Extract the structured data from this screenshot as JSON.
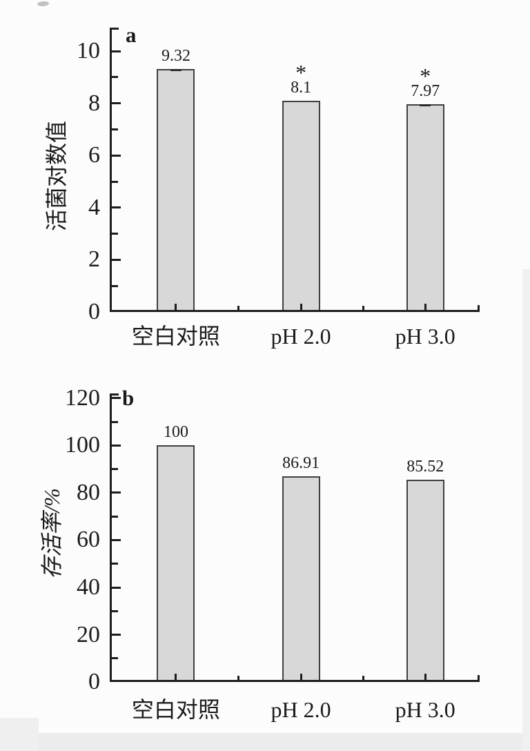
{
  "figure": {
    "background": "#fcfcfc",
    "panel_count": 2
  },
  "chart_data": [
    {
      "type": "bar",
      "panel_label": "a",
      "title": "",
      "xlabel": "",
      "ylabel": "活菌对数值",
      "categories": [
        "空白对照",
        "pH 2.0",
        "pH 3.0"
      ],
      "values": [
        9.32,
        8.1,
        7.97
      ],
      "value_labels": [
        "9.32",
        "8.1",
        "7.97"
      ],
      "annotations": [
        "",
        "*",
        "*"
      ],
      "error_caps": [
        true,
        false,
        true
      ],
      "yticks": [
        0,
        2,
        4,
        6,
        8,
        10
      ],
      "ytick_labels": [
        "0",
        "2",
        "4",
        "6",
        "8",
        "10"
      ],
      "minor_yticks": [
        1,
        3,
        5,
        7,
        9
      ],
      "ylim": [
        0,
        10.9
      ],
      "grid": false,
      "legend": false,
      "bar_fill": "#d8d8d8",
      "bar_border": "#3f3f3f",
      "axis_color": "#1c1c1c",
      "text_color": "#1a1a1a"
    },
    {
      "type": "bar",
      "panel_label": "b",
      "title": "",
      "xlabel": "",
      "ylabel": "存活率/%",
      "ylabel_style": "italic",
      "categories": [
        "空白对照",
        "pH 2.0",
        "pH 3.0"
      ],
      "values": [
        100,
        86.91,
        85.52
      ],
      "value_labels": [
        "100",
        "86.91",
        "85.52"
      ],
      "annotations": [
        "",
        "",
        ""
      ],
      "error_caps": [
        false,
        false,
        false
      ],
      "yticks": [
        0,
        20,
        40,
        60,
        80,
        100,
        120
      ],
      "ytick_labels": [
        "0",
        "20",
        "40",
        "60",
        "80",
        "100",
        "120"
      ],
      "minor_yticks": [
        10,
        30,
        50,
        70,
        90,
        110
      ],
      "ylim": [
        0,
        122
      ],
      "grid": false,
      "legend": false,
      "bar_fill": "#d8d8d8",
      "bar_border": "#3f3f3f",
      "axis_color": "#1c1c1c",
      "text_color": "#1a1a1a"
    }
  ]
}
